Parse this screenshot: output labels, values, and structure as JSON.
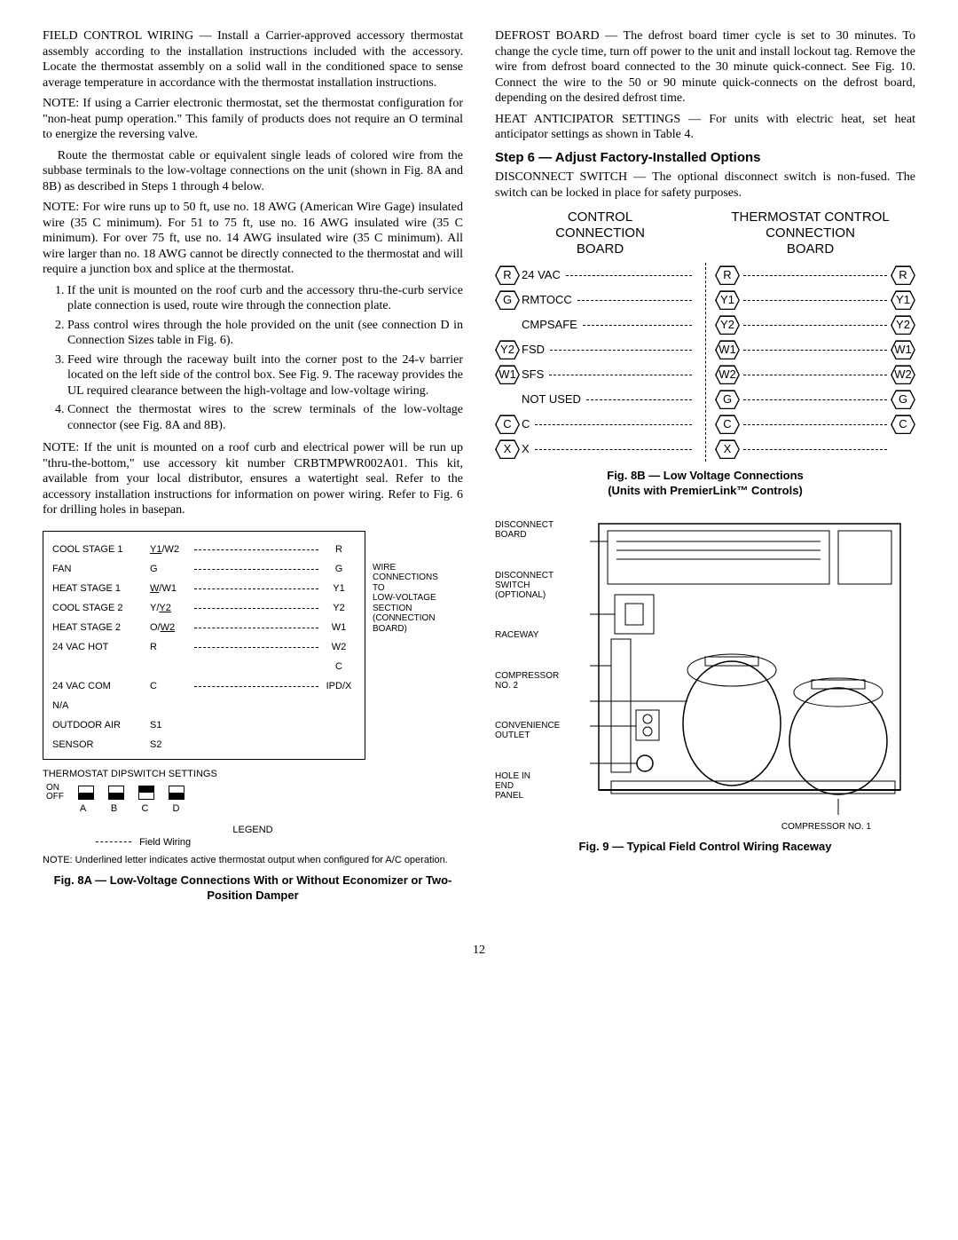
{
  "left": {
    "p1": "FIELD CONTROL WIRING — Install a Carrier-approved accessory thermostat assembly according to the installation instructions included with the accessory. Locate the thermostat assembly on a solid wall in the conditioned space to sense average temperature in accordance with the thermostat installation instructions.",
    "p2": "NOTE: If using a Carrier electronic thermostat, set the thermostat configuration for \"non-heat pump operation.\" This family of products does not require an O terminal to energize the reversing valve.",
    "p3": "Route the thermostat cable or equivalent single leads of colored wire from the subbase terminals to the low-voltage connections on the unit (shown in Fig. 8A and 8B) as described in Steps 1 through 4 below.",
    "p4": "NOTE: For wire runs up to 50 ft, use no. 18 AWG (American Wire Gage) insulated wire (35 C minimum). For 51 to 75 ft, use no. 16 AWG insulated wire (35 C minimum). For over 75 ft, use no. 14 AWG insulated wire (35 C minimum). All wire larger than no. 18 AWG cannot be directly connected to the thermostat and will require a junction box and splice at the thermostat.",
    "step1": "If the unit is mounted on the roof curb and the accessory thru-the-curb service plate connection is used, route wire through the connection plate.",
    "step2": "Pass control wires through the hole provided on the unit (see connection D in Connection Sizes table in Fig. 6).",
    "step3": "Feed wire through the raceway built into the corner post to the 24-v barrier located on the left side of the control box. See Fig. 9. The raceway provides the UL required clearance between the high-voltage and low-voltage wiring.",
    "step4": "Connect the thermostat wires to the screw terminals of the low-voltage connector (see Fig. 8A and 8B).",
    "p5": "NOTE: If the unit is mounted on a roof curb and electrical power will be run up \"thru-the-bottom,\" use accessory kit number CRBTMPWR002A01. This kit, available from your local distributor, ensures a watertight seal. Refer to the accessory installation instructions for information on power wiring. Refer to Fig. 6 for drilling holes in basepan."
  },
  "right": {
    "p1": "DEFROST BOARD — The defrost board timer cycle is set to 30 minutes. To change the cycle time, turn off power to the unit and install lockout tag. Remove the wire from defrost board connected to the 30 minute quick-connect. See Fig. 10. Connect the wire to the 50 or 90 minute quick-connects on the defrost board, depending on the desired defrost time.",
    "p2": "HEAT ANTICIPATOR SETTINGS — For units with electric heat, set heat anticipator settings as shown in Table 4.",
    "step6": "Step 6 — Adjust Factory-Installed Options",
    "p3": "DISCONNECT SWITCH — The optional disconnect switch is non-fused. The switch can be locked in place for safety purposes."
  },
  "fig8a": {
    "rows": [
      {
        "label": "COOL STAGE 1",
        "sig": "Y1",
        "sig2": "/W2",
        "term": "R",
        "u": true
      },
      {
        "label": "FAN",
        "sig": "G",
        "term": "G"
      },
      {
        "label": "HEAT STAGE 1",
        "sig": "W",
        "sig2": "/W1",
        "term": "Y1",
        "u": true
      },
      {
        "label": "COOL STAGE 2",
        "sigpre": "Y/",
        "sig": "Y2",
        "term": "Y2",
        "u": true
      },
      {
        "label": "HEAT STAGE 2",
        "sigpre": "O/",
        "sig": "W2",
        "term": "W1",
        "u": true
      },
      {
        "label": "24 VAC HOT",
        "sig": "R",
        "term": "W2"
      },
      {
        "label": "",
        "sig": "",
        "term": "C",
        "nodash": true
      },
      {
        "label": "24 VAC COM",
        "sig": "C",
        "term": "IPD/X"
      },
      {
        "label": "N/A",
        "sig": "",
        "term": "",
        "nodash": true
      },
      {
        "label": "OUTDOOR AIR",
        "sig": "S1",
        "term": "",
        "nodash": true
      },
      {
        "label": "SENSOR",
        "sig": "S2",
        "term": "",
        "nodash": true
      }
    ],
    "brace": "WIRE\nCONNECTIONS\nTO\nLOW-VOLTAGE\nSECTION\n(CONNECTION\nBOARD)",
    "dip_title": "THERMOSTAT DIPSWITCH SETTINGS",
    "dip_on": "ON",
    "dip_off": "OFF",
    "dip_letters": [
      "A",
      "B",
      "C",
      "D"
    ],
    "dip_states": [
      "off",
      "off",
      "on",
      "off"
    ],
    "legend": "LEGEND",
    "legend_fw": "Field Wiring",
    "note": "NOTE: Underlined letter indicates active thermostat output when configured for A/C operation.",
    "caption": "Fig. 8A — Low-Voltage Connections With or Without Economizer or Two-Position Damper"
  },
  "fig8b": {
    "hl": "CONTROL\nCONNECTION\nBOARD",
    "hr": "THERMOSTAT CONTROL\nCONNECTION\nBOARD",
    "left_rows": [
      {
        "hex": "R",
        "sig": "24 VAC"
      },
      {
        "hex": "G",
        "sig": "RMTOCC"
      },
      {
        "hex": "",
        "sig": "CMPSAFE",
        "nohex": true
      },
      {
        "hex": "Y2",
        "sig": "FSD"
      },
      {
        "hex": "W1",
        "sig": "SFS"
      },
      {
        "hex": "",
        "sig": "NOT USED",
        "nohex": true
      },
      {
        "hex": "C",
        "sig": "C"
      },
      {
        "hex": "X",
        "sig": "X"
      }
    ],
    "right_rows": [
      {
        "a": "R",
        "b": "R"
      },
      {
        "a": "Y1",
        "b": "Y1"
      },
      {
        "a": "Y2",
        "b": "Y2"
      },
      {
        "a": "W1",
        "b": "W1"
      },
      {
        "a": "W2",
        "b": "W2"
      },
      {
        "a": "G",
        "b": "G"
      },
      {
        "a": "C",
        "b": "C"
      },
      {
        "a": "X",
        "b": ""
      }
    ],
    "caption": "Fig. 8B — Low Voltage Connections\n(Units with PremierLink™ Controls)"
  },
  "fig9": {
    "labels": [
      "DISCONNECT\nBOARD",
      "DISCONNECT\nSWITCH\n(OPTIONAL)",
      "RACEWAY",
      "COMPRESSOR\nNO. 2",
      "CONVENIENCE\nOUTLET",
      "HOLE IN\nEND\nPANEL"
    ],
    "bottom": "COMPRESSOR NO. 1",
    "caption": "Fig. 9 — Typical Field Control Wiring Raceway"
  },
  "pagenum": "12"
}
